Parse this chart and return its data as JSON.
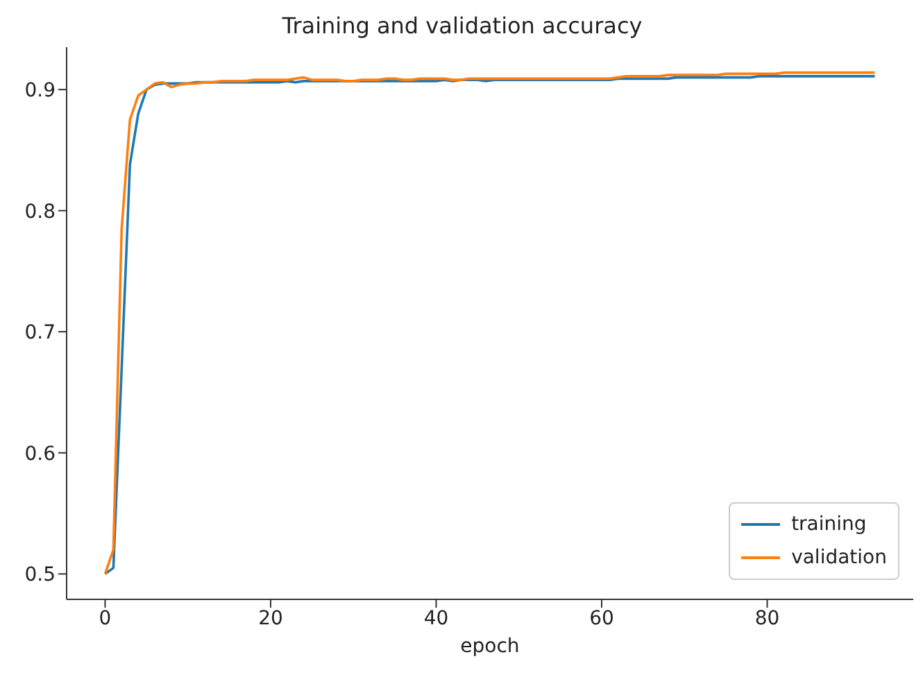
{
  "chart_data": {
    "type": "line",
    "title": "Training and validation accuracy",
    "xlabel": "epoch",
    "x": [
      0,
      1,
      2,
      3,
      4,
      5,
      6,
      7,
      8,
      9,
      10,
      11,
      12,
      13,
      14,
      15,
      16,
      17,
      18,
      19,
      20,
      21,
      22,
      23,
      24,
      25,
      26,
      27,
      28,
      29,
      30,
      31,
      32,
      33,
      34,
      35,
      36,
      37,
      38,
      39,
      40,
      41,
      42,
      43,
      44,
      45,
      46,
      47,
      48,
      49,
      50,
      51,
      52,
      53,
      54,
      55,
      56,
      57,
      58,
      59,
      60,
      61,
      62,
      63,
      64,
      65,
      66,
      67,
      68,
      69,
      70,
      71,
      72,
      73,
      74,
      75,
      76,
      77,
      78,
      79,
      80,
      81,
      82,
      83,
      84,
      85,
      86,
      87,
      88,
      89,
      90,
      91,
      92,
      93
    ],
    "series": [
      {
        "name": "training",
        "color": "#1f77b4",
        "values": [
          0.5,
          0.505,
          0.67,
          0.838,
          0.88,
          0.9,
          0.904,
          0.905,
          0.905,
          0.905,
          0.905,
          0.906,
          0.906,
          0.906,
          0.906,
          0.906,
          0.906,
          0.906,
          0.906,
          0.906,
          0.906,
          0.906,
          0.907,
          0.906,
          0.907,
          0.907,
          0.907,
          0.907,
          0.907,
          0.907,
          0.907,
          0.907,
          0.907,
          0.907,
          0.907,
          0.907,
          0.907,
          0.907,
          0.907,
          0.907,
          0.907,
          0.908,
          0.907,
          0.908,
          0.908,
          0.908,
          0.907,
          0.908,
          0.908,
          0.908,
          0.908,
          0.908,
          0.908,
          0.908,
          0.908,
          0.908,
          0.908,
          0.908,
          0.908,
          0.908,
          0.908,
          0.908,
          0.909,
          0.909,
          0.909,
          0.909,
          0.909,
          0.909,
          0.909,
          0.91,
          0.91,
          0.91,
          0.91,
          0.91,
          0.91,
          0.91,
          0.91,
          0.91,
          0.91,
          0.911,
          0.911,
          0.911,
          0.911,
          0.911,
          0.911,
          0.911,
          0.911,
          0.911,
          0.911,
          0.911,
          0.911,
          0.911,
          0.911,
          0.911
        ]
      },
      {
        "name": "validation",
        "color": "#ff7f0e",
        "values": [
          0.5,
          0.52,
          0.785,
          0.875,
          0.895,
          0.9,
          0.905,
          0.906,
          0.902,
          0.904,
          0.905,
          0.905,
          0.906,
          0.906,
          0.907,
          0.907,
          0.907,
          0.907,
          0.908,
          0.908,
          0.908,
          0.908,
          0.908,
          0.909,
          0.91,
          0.908,
          0.908,
          0.908,
          0.908,
          0.907,
          0.907,
          0.908,
          0.908,
          0.908,
          0.909,
          0.909,
          0.908,
          0.908,
          0.909,
          0.909,
          0.909,
          0.909,
          0.908,
          0.908,
          0.909,
          0.909,
          0.909,
          0.909,
          0.909,
          0.909,
          0.909,
          0.909,
          0.909,
          0.909,
          0.909,
          0.909,
          0.909,
          0.909,
          0.909,
          0.909,
          0.909,
          0.909,
          0.91,
          0.911,
          0.911,
          0.911,
          0.911,
          0.911,
          0.912,
          0.912,
          0.912,
          0.912,
          0.912,
          0.912,
          0.912,
          0.913,
          0.913,
          0.913,
          0.913,
          0.913,
          0.913,
          0.913,
          0.914,
          0.914,
          0.914,
          0.914,
          0.914,
          0.914,
          0.914,
          0.914,
          0.914,
          0.914,
          0.914,
          0.914
        ]
      }
    ],
    "xlim": [
      -4.65,
      97.65
    ],
    "ylim": [
      0.479,
      0.935
    ],
    "xticks": [
      0,
      20,
      40,
      60,
      80
    ],
    "yticks": [
      0.5,
      0.6,
      0.7,
      0.8,
      0.9
    ],
    "grid": false,
    "legend": "bottom right",
    "marker": "none",
    "line_style": "solid"
  }
}
